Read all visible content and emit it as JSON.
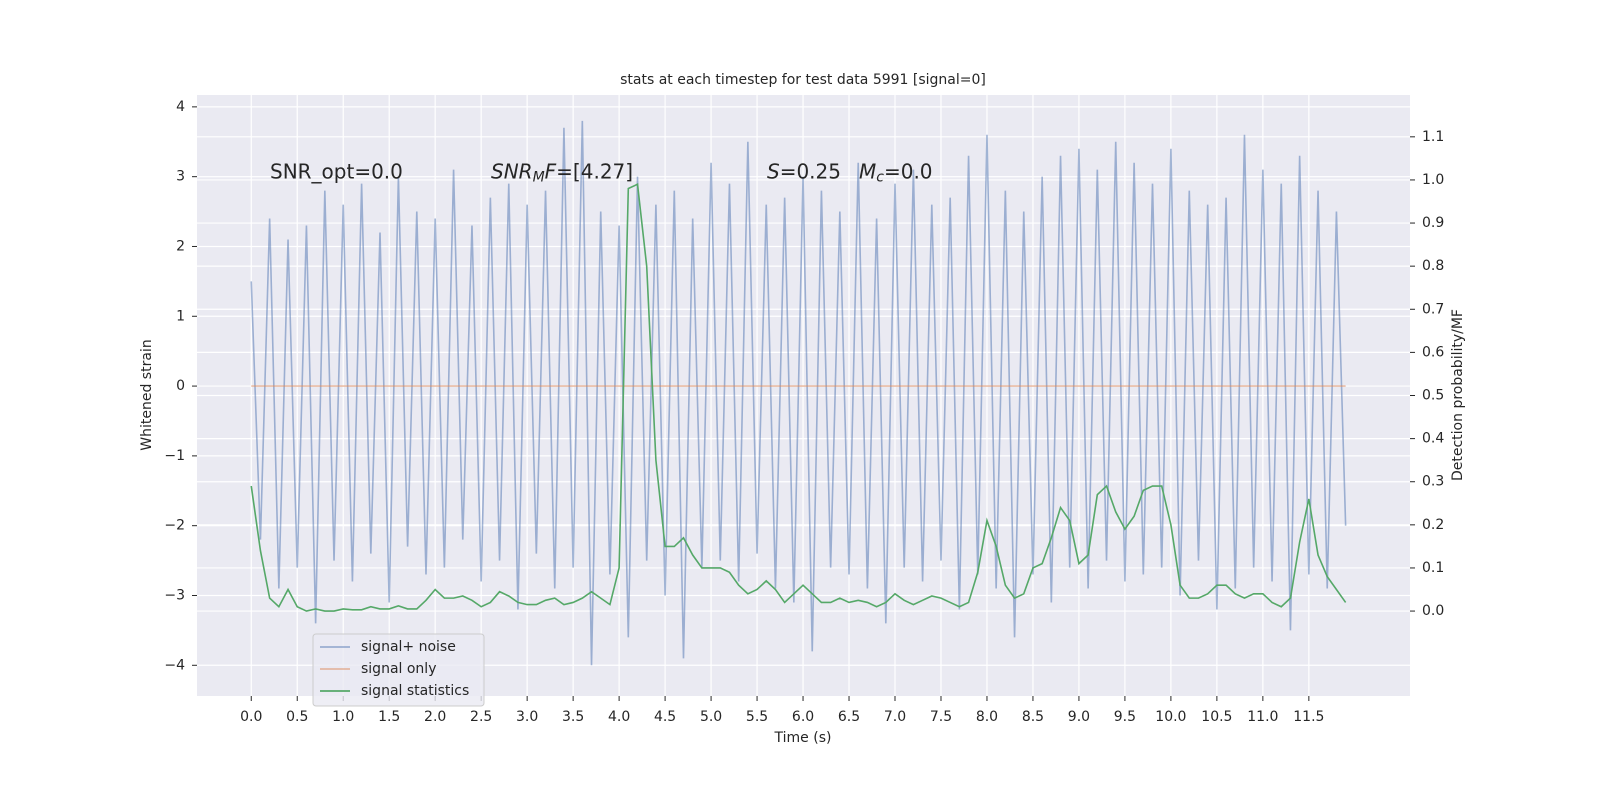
{
  "chart_data": {
    "type": "line",
    "title": "stats at each timestep for test data 5991 [signal=0]",
    "xlabel": "Time (s)",
    "ylabel": "Whitened strain",
    "y2label": "Detection probability/MF",
    "annotations": [
      {
        "parts": [
          {
            "text": "SNR_opt=0.0"
          }
        ]
      },
      {
        "parts": [
          {
            "text": "SNR",
            "style": "italic"
          },
          {
            "text": "M",
            "style": "sub"
          },
          {
            "text": "F",
            "style": "italic"
          },
          {
            "text": "=[4.27]"
          }
        ]
      },
      {
        "parts": [
          {
            "text": "S",
            "style": "italic"
          },
          {
            "text": "=0.25"
          }
        ]
      },
      {
        "parts": [
          {
            "text": "M",
            "style": "italic"
          },
          {
            "text": "c",
            "style": "sub"
          },
          {
            "text": "=0.0"
          }
        ]
      }
    ],
    "x": [
      0,
      0.1,
      0.2,
      0.3,
      0.4,
      0.5,
      0.6,
      0.7,
      0.8,
      0.9,
      1,
      1.1,
      1.2,
      1.3,
      1.4,
      1.5,
      1.6,
      1.7,
      1.8,
      1.9,
      2,
      2.1,
      2.2,
      2.3,
      2.4,
      2.5,
      2.6,
      2.7,
      2.8,
      2.9,
      3,
      3.1,
      3.2,
      3.3,
      3.4,
      3.5,
      3.6,
      3.7,
      3.8,
      3.9,
      4,
      4.1,
      4.2,
      4.3,
      4.4,
      4.5,
      4.6,
      4.7,
      4.8,
      4.9,
      5,
      5.1,
      5.2,
      5.3,
      5.4,
      5.5,
      5.6,
      5.7,
      5.8,
      5.9,
      6,
      6.1,
      6.2,
      6.3,
      6.4,
      6.5,
      6.6,
      6.7,
      6.8,
      6.9,
      7,
      7.1,
      7.2,
      7.3,
      7.4,
      7.5,
      7.6,
      7.7,
      7.8,
      7.9,
      8,
      8.1,
      8.2,
      8.3,
      8.4,
      8.5,
      8.6,
      8.7,
      8.8,
      8.9,
      9,
      9.1,
      9.2,
      9.3,
      9.4,
      9.5,
      9.6,
      9.7,
      9.8,
      9.9,
      10,
      10.1,
      10.2,
      10.3,
      10.4,
      10.5,
      10.6,
      10.7,
      10.8,
      10.9,
      11,
      11.1,
      11.2,
      11.3,
      11.4,
      11.5,
      11.6,
      11.7,
      11.8,
      11.9
    ],
    "series": [
      {
        "name": "signal+ noise",
        "color": "#4c72b0",
        "opacity": 0.5,
        "values": [
          1.5,
          -2.2,
          2.4,
          -2.9,
          2.1,
          -2.6,
          2.3,
          -3.4,
          2.8,
          -2.5,
          2.6,
          -2.8,
          2.9,
          -2.4,
          2.2,
          -3.1,
          3.0,
          -2.3,
          2.5,
          -2.7,
          2.4,
          -2.6,
          3.1,
          -2.2,
          2.3,
          -2.8,
          2.7,
          -2.5,
          2.9,
          -3.2,
          2.6,
          -2.4,
          2.8,
          -2.9,
          3.7,
          -2.6,
          3.8,
          -4.0,
          2.5,
          -2.7,
          2.3,
          -3.6,
          3.0,
          -2.5,
          2.6,
          -3.0,
          2.8,
          -3.9,
          2.4,
          -2.6,
          3.2,
          -2.5,
          2.9,
          -2.8,
          3.5,
          -2.4,
          2.6,
          -2.9,
          2.7,
          -3.1,
          3.0,
          -3.8,
          2.8,
          -2.6,
          2.5,
          -2.7,
          3.2,
          -2.9,
          2.4,
          -3.4,
          2.9,
          -2.6,
          3.1,
          -2.8,
          2.6,
          -2.5,
          2.7,
          -3.2,
          3.3,
          -2.7,
          3.6,
          -2.9,
          2.8,
          -3.6,
          2.5,
          -2.7,
          3.0,
          -3.1,
          3.3,
          -2.6,
          3.4,
          -2.9,
          3.1,
          -2.5,
          3.5,
          -2.8,
          3.2,
          -2.7,
          2.9,
          -2.6,
          3.4,
          -3.0,
          2.8,
          -2.5,
          2.6,
          -3.2,
          2.7,
          -2.9,
          3.6,
          -2.6,
          3.1,
          -2.8,
          2.9,
          -3.5,
          3.3,
          -2.7,
          2.8,
          -2.9,
          2.5,
          -2.0
        ]
      },
      {
        "name": "signal only",
        "color": "#dd8452",
        "opacity": 0.5,
        "values": [
          0,
          0,
          0,
          0,
          0,
          0,
          0,
          0,
          0,
          0,
          0,
          0,
          0,
          0,
          0,
          0,
          0,
          0,
          0,
          0,
          0,
          0,
          0,
          0,
          0,
          0,
          0,
          0,
          0,
          0,
          0,
          0,
          0,
          0,
          0,
          0,
          0,
          0,
          0,
          0,
          0,
          0,
          0,
          0,
          0,
          0,
          0,
          0,
          0,
          0,
          0,
          0,
          0,
          0,
          0,
          0,
          0,
          0,
          0,
          0,
          0,
          0,
          0,
          0,
          0,
          0,
          0,
          0,
          0,
          0,
          0,
          0,
          0,
          0,
          0,
          0,
          0,
          0,
          0,
          0,
          0,
          0,
          0,
          0,
          0,
          0,
          0,
          0,
          0,
          0,
          0,
          0,
          0,
          0,
          0,
          0,
          0,
          0,
          0,
          0,
          0,
          0,
          0,
          0,
          0,
          0,
          0,
          0,
          0,
          0,
          0,
          0,
          0,
          0,
          0,
          0,
          0,
          0,
          0,
          0
        ]
      },
      {
        "name": "signal statistics",
        "color": "#55a868",
        "opacity": 1,
        "axis": "y2",
        "values": [
          0.29,
          0.14,
          0.03,
          0.01,
          0.05,
          0.01,
          0,
          0.005,
          0,
          0,
          0.005,
          0.003,
          0.003,
          0.01,
          0.005,
          0.005,
          0.012,
          0.005,
          0.005,
          0.025,
          0.05,
          0.03,
          0.03,
          0.035,
          0.025,
          0.01,
          0.02,
          0.045,
          0.035,
          0.02,
          0.015,
          0.015,
          0.025,
          0.03,
          0.015,
          0.02,
          0.03,
          0.045,
          0.03,
          0.015,
          0.1,
          0.98,
          0.99,
          0.8,
          0.35,
          0.15,
          0.15,
          0.17,
          0.13,
          0.1,
          0.1,
          0.1,
          0.09,
          0.06,
          0.04,
          0.05,
          0.07,
          0.05,
          0.02,
          0.04,
          0.06,
          0.04,
          0.02,
          0.02,
          0.03,
          0.02,
          0.025,
          0.02,
          0.01,
          0.02,
          0.04,
          0.025,
          0.015,
          0.025,
          0.035,
          0.03,
          0.02,
          0.01,
          0.02,
          0.09,
          0.21,
          0.15,
          0.06,
          0.03,
          0.04,
          0.1,
          0.11,
          0.17,
          0.24,
          0.21,
          0.11,
          0.13,
          0.27,
          0.29,
          0.23,
          0.19,
          0.22,
          0.28,
          0.29,
          0.29,
          0.2,
          0.06,
          0.03,
          0.03,
          0.04,
          0.06,
          0.06,
          0.04,
          0.03,
          0.04,
          0.04,
          0.02,
          0.01,
          0.03,
          0.16,
          0.26,
          0.13,
          0.08,
          0.05,
          0.02
        ]
      }
    ],
    "xlim": [
      -0.59,
      12.6
    ],
    "xticks": [
      {
        "value": 0,
        "label": "0.0"
      },
      {
        "value": 0.5,
        "label": "0.5"
      },
      {
        "value": 1,
        "label": "1.0"
      },
      {
        "value": 1.5,
        "label": "1.5"
      },
      {
        "value": 2,
        "label": "2.0"
      },
      {
        "value": 2.5,
        "label": "2.5"
      },
      {
        "value": 3,
        "label": "3.0"
      },
      {
        "value": 3.5,
        "label": "3.5"
      },
      {
        "value": 4,
        "label": "4.0"
      },
      {
        "value": 4.5,
        "label": "4.5"
      },
      {
        "value": 5,
        "label": "5.0"
      },
      {
        "value": 5.5,
        "label": "5.5"
      },
      {
        "value": 6,
        "label": "6.0"
      },
      {
        "value": 6.5,
        "label": "6.5"
      },
      {
        "value": 7,
        "label": "7.0"
      },
      {
        "value": 7.5,
        "label": "7.5"
      },
      {
        "value": 8,
        "label": "8.0"
      },
      {
        "value": 8.5,
        "label": "8.5"
      },
      {
        "value": 9,
        "label": "9.0"
      },
      {
        "value": 9.5,
        "label": "9.5"
      },
      {
        "value": 10,
        "label": "10.0"
      },
      {
        "value": 10.5,
        "label": "10.5"
      },
      {
        "value": 11,
        "label": "11.0"
      },
      {
        "value": 11.5,
        "label": "11.5"
      }
    ],
    "ylim": [
      -4.44,
      4.17
    ],
    "yticks": [
      {
        "value": -4,
        "label": "−4"
      },
      {
        "value": -3,
        "label": "−3"
      },
      {
        "value": -2,
        "label": "−2"
      },
      {
        "value": -1,
        "label": "−1"
      },
      0,
      1,
      2,
      3,
      4
    ],
    "y2lim": [
      -0.197,
      1.197
    ],
    "y2ticks": [
      {
        "value": 0,
        "label": "0.0"
      },
      {
        "value": 0.1,
        "label": "0.1"
      },
      {
        "value": 0.2,
        "label": "0.2"
      },
      {
        "value": 0.3,
        "label": "0.3"
      },
      {
        "value": 0.4,
        "label": "0.4"
      },
      {
        "value": 0.5,
        "label": "0.5"
      },
      {
        "value": 0.6,
        "label": "0.6"
      },
      {
        "value": 0.7,
        "label": "0.7"
      },
      {
        "value": 0.8,
        "label": "0.8"
      },
      {
        "value": 0.9,
        "label": "0.9"
      },
      {
        "value": 1,
        "label": "1.0"
      },
      {
        "value": 1.1,
        "label": "1.1"
      }
    ],
    "grid": true,
    "legend": "lower left"
  }
}
